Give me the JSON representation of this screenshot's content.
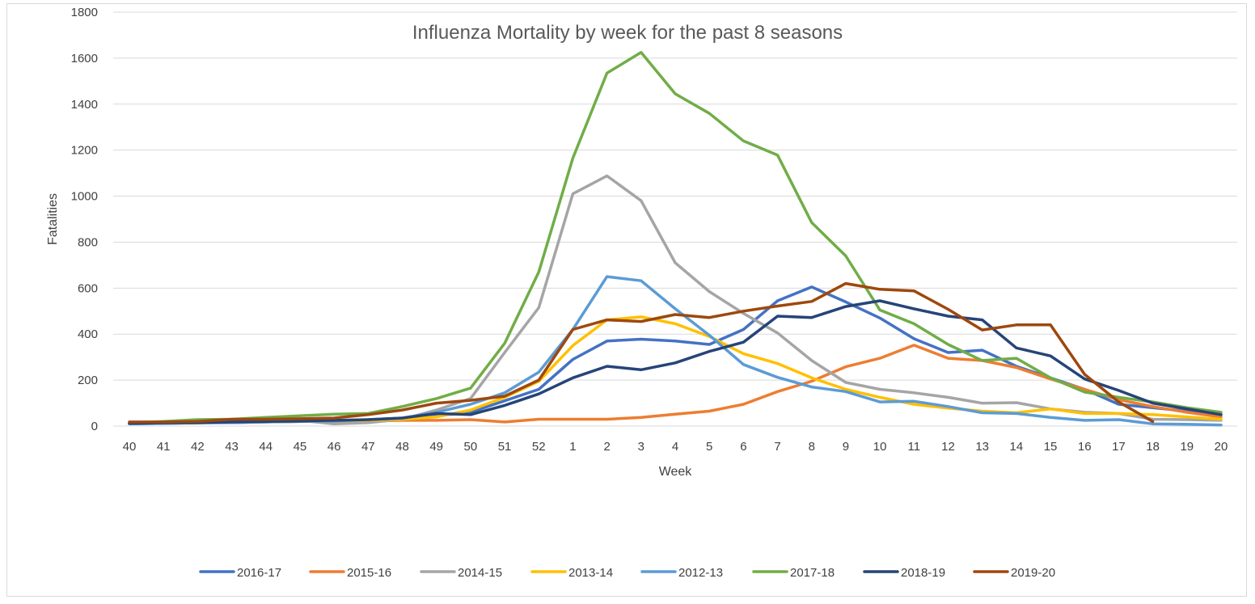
{
  "chart_data": {
    "type": "line",
    "title": "Influenza Mortality by week for the past 8 seasons",
    "xlabel": "Week",
    "ylabel": "Fatalities",
    "ylim": [
      0,
      1800
    ],
    "yticks": [
      "0",
      "200",
      "400",
      "600",
      "800",
      "1000",
      "1200",
      "1400",
      "1600",
      "1800"
    ],
    "categories": [
      "40",
      "41",
      "42",
      "43",
      "44",
      "45",
      "46",
      "47",
      "48",
      "49",
      "50",
      "51",
      "52",
      "1",
      "2",
      "3",
      "4",
      "5",
      "6",
      "7",
      "8",
      "9",
      "10",
      "11",
      "12",
      "13",
      "14",
      "15",
      "16",
      "17",
      "18",
      "19",
      "20"
    ],
    "grid": true,
    "legend_position": "bottom",
    "series": [
      {
        "name": "2016-17",
        "color": "#4472C4",
        "values": [
          10,
          12,
          14,
          15,
          18,
          20,
          22,
          25,
          30,
          45,
          60,
          110,
          160,
          290,
          370,
          378,
          370,
          355,
          420,
          545,
          605,
          540,
          470,
          380,
          320,
          330,
          260,
          210,
          160,
          95,
          80,
          65,
          50
        ]
      },
      {
        "name": "2015-16",
        "color": "#ED7D31",
        "values": [
          12,
          14,
          15,
          16,
          18,
          20,
          22,
          22,
          25,
          25,
          28,
          18,
          30,
          30,
          30,
          38,
          52,
          65,
          95,
          150,
          195,
          258,
          295,
          352,
          295,
          285,
          255,
          205,
          160,
          115,
          85,
          60,
          40
        ]
      },
      {
        "name": "2014-15",
        "color": "#A5A5A5",
        "values": [
          15,
          18,
          20,
          20,
          22,
          25,
          10,
          15,
          30,
          70,
          120,
          320,
          515,
          1010,
          1088,
          980,
          710,
          585,
          490,
          405,
          285,
          190,
          160,
          145,
          125,
          100,
          102,
          75,
          60,
          55,
          30,
          28,
          25
        ]
      },
      {
        "name": "2013-14",
        "color": "#FFC000",
        "values": [
          12,
          14,
          15,
          16,
          18,
          20,
          22,
          25,
          30,
          40,
          70,
          125,
          195,
          350,
          462,
          475,
          445,
          390,
          315,
          272,
          210,
          160,
          125,
          95,
          78,
          65,
          58,
          75,
          55,
          55,
          50,
          40,
          30
        ]
      },
      {
        "name": "2012-13",
        "color": "#5B9BD5",
        "values": [
          10,
          12,
          14,
          15,
          18,
          20,
          22,
          28,
          35,
          60,
          95,
          145,
          235,
          420,
          650,
          632,
          510,
          395,
          268,
          212,
          170,
          150,
          105,
          108,
          85,
          58,
          55,
          38,
          25,
          28,
          10,
          8,
          5
        ]
      },
      {
        "name": "2017-18",
        "color": "#70AD47",
        "values": [
          15,
          20,
          28,
          30,
          38,
          45,
          52,
          55,
          85,
          120,
          165,
          360,
          670,
          1165,
          1535,
          1625,
          1445,
          1360,
          1240,
          1178,
          885,
          740,
          505,
          445,
          355,
          285,
          295,
          210,
          148,
          125,
          105,
          80,
          60
        ]
      },
      {
        "name": "2018-19",
        "color": "#264478",
        "values": [
          12,
          14,
          15,
          18,
          20,
          22,
          25,
          28,
          35,
          55,
          50,
          90,
          140,
          210,
          260,
          245,
          275,
          325,
          365,
          478,
          472,
          520,
          545,
          510,
          478,
          462,
          340,
          305,
          205,
          155,
          100,
          75,
          50
        ]
      },
      {
        "name": "2019-20",
        "color": "#9E480E",
        "values": [
          18,
          18,
          20,
          30,
          30,
          32,
          35,
          50,
          70,
          100,
          112,
          130,
          200,
          420,
          462,
          455,
          485,
          472,
          500,
          522,
          542,
          620,
          595,
          588,
          508,
          418,
          440,
          440,
          225,
          105,
          20,
          null,
          null
        ]
      }
    ]
  }
}
